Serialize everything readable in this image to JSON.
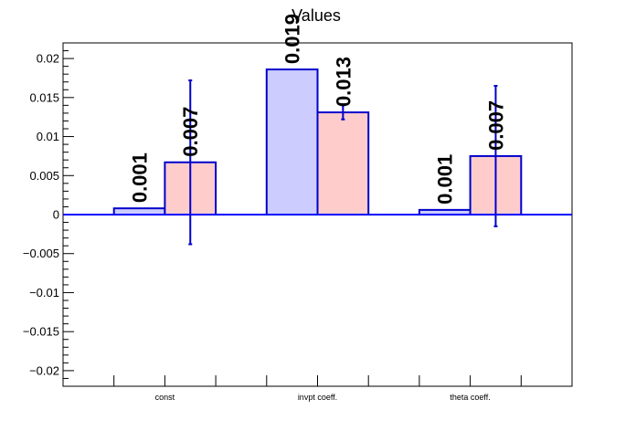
{
  "colors": {
    "series_a_fill": "#ccccff",
    "series_b_fill": "#ffcccc",
    "bar_stroke": "#0000cc",
    "error_bar": "#0000cc",
    "zero_line": "#0000ff",
    "axis": "#000000"
  },
  "chart_data": {
    "type": "bar",
    "title": "Values",
    "xlabel": "",
    "ylabel": "",
    "ylim": [
      -0.022,
      0.022
    ],
    "yticks": [
      -0.02,
      -0.015,
      -0.01,
      -0.005,
      0,
      0.005,
      0.01,
      0.015,
      0.02
    ],
    "ytick_labels": [
      "−0.02",
      "−0.015",
      "−0.01",
      "−0.005",
      "0",
      "0.005",
      "0.01",
      "0.015",
      "0.02"
    ],
    "grid": false,
    "legend": "none",
    "categories": [
      "const",
      "invpt coeff.",
      "theta coeff."
    ],
    "series": [
      {
        "values": [
          0.0008,
          0.0186,
          0.0006
        ],
        "labels": [
          "0.001",
          "0.019",
          "0.001"
        ],
        "errors": [
          null,
          null,
          null
        ]
      },
      {
        "values": [
          0.0067,
          0.0131,
          0.0075
        ],
        "labels": [
          "0.007",
          "0.013",
          "0.007"
        ],
        "errors": [
          0.0105,
          0.0009,
          0.009
        ]
      }
    ]
  }
}
